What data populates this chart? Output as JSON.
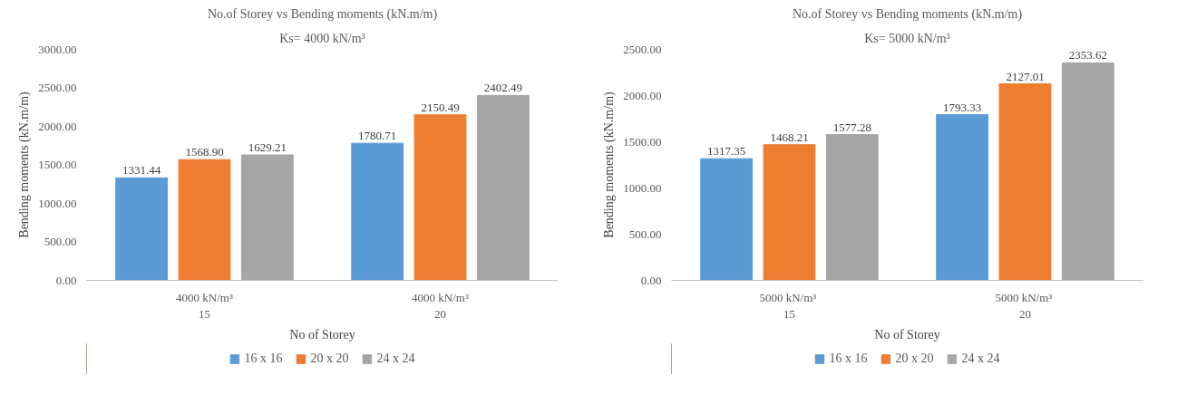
{
  "chart_data": [
    {
      "type": "bar",
      "title": "No.of Storey vs Bending moments (kN.m/m)",
      "subtitle": "Ks= 4000 kN/m³",
      "xlabel": "No of Storey",
      "ylabel": "Bending moments (kN.m/m)",
      "categories": [
        "4000 kN/m³\n15",
        "4000 kN/m³\n20"
      ],
      "series": [
        {
          "name": "16 x 16",
          "color": "#5b9bd5",
          "values": [
            1331.44,
            1780.71
          ]
        },
        {
          "name": "20 x 20",
          "color": "#ed7d31",
          "values": [
            1568.9,
            2150.49
          ]
        },
        {
          "name": "24 x 24",
          "color": "#a5a5a5",
          "values": [
            1629.21,
            2402.49
          ]
        }
      ],
      "ylim": [
        0,
        3000
      ],
      "yticks": [
        {
          "value": 0,
          "label": "0.00"
        },
        {
          "value": 500,
          "label": "500.00"
        },
        {
          "value": 1000,
          "label": "1000.00"
        },
        {
          "value": 1500,
          "label": "1500.00"
        },
        {
          "value": 2000,
          "label": "2000.00"
        },
        {
          "value": 2500,
          "label": "2500.00"
        },
        {
          "value": 3000,
          "label": "3000.00"
        }
      ],
      "value_labels": [
        [
          "1331.44",
          "1780.71"
        ],
        [
          "1568.90",
          "2150.49"
        ],
        [
          "1629.21",
          "2402.49"
        ]
      ],
      "legend": "bottom",
      "grid": false
    },
    {
      "type": "bar",
      "title": "No.of Storey vs Bending moments (kN.m/m)",
      "subtitle": "Ks= 5000 kN/m³",
      "xlabel": "No of Storey",
      "ylabel": "Bending moments (kN.m/m)",
      "categories": [
        "5000  kN/m³\n15",
        "5000  kN/m³\n20"
      ],
      "series": [
        {
          "name": "16 x 16",
          "color": "#5b9bd5",
          "values": [
            1317.35,
            1793.33
          ]
        },
        {
          "name": "20 x 20",
          "color": "#ed7d31",
          "values": [
            1468.21,
            2127.01
          ]
        },
        {
          "name": "24 x 24",
          "color": "#a5a5a5",
          "values": [
            1577.28,
            2353.62
          ]
        }
      ],
      "ylim": [
        0,
        2500
      ],
      "yticks": [
        {
          "value": 0,
          "label": "0.00"
        },
        {
          "value": 500,
          "label": "500.00"
        },
        {
          "value": 1000,
          "label": "1000.00"
        },
        {
          "value": 1500,
          "label": "1500.00"
        },
        {
          "value": 2000,
          "label": "2000.00"
        },
        {
          "value": 2500,
          "label": "2500.00"
        }
      ],
      "value_labels": [
        [
          "1317.35",
          "1793.33"
        ],
        [
          "1468.21",
          "2127.01"
        ],
        [
          "1577.28",
          "2353.62"
        ]
      ],
      "legend": "bottom",
      "grid": false
    }
  ]
}
